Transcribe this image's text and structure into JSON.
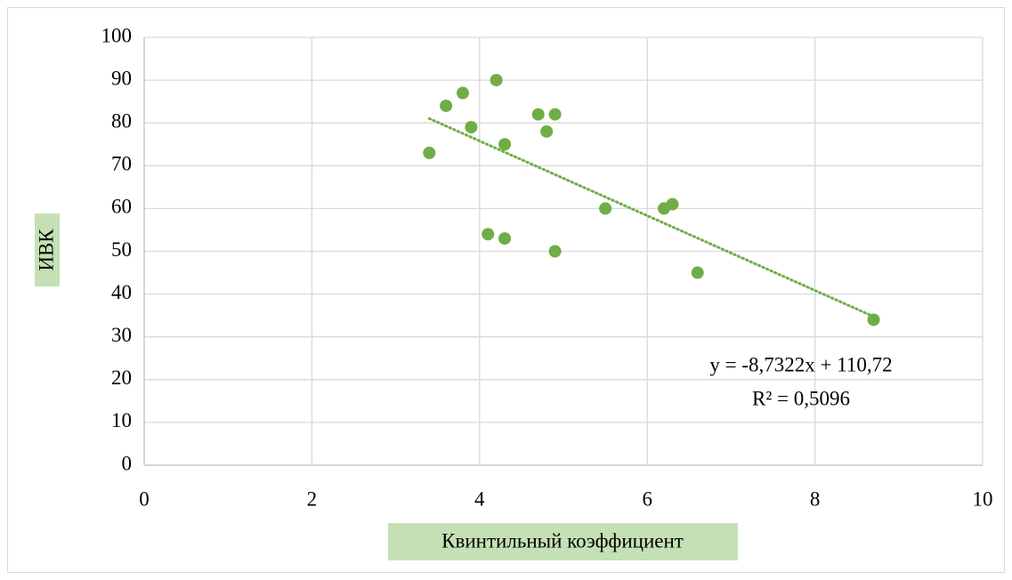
{
  "chart_data": {
    "type": "scatter",
    "x_label": "Квинтильный коэффициент",
    "y_label": "ИВК",
    "series": [
      {
        "color": "#70ad47",
        "x": [
          3.4,
          3.6,
          3.8,
          3.9,
          4.2,
          4.3,
          4.1,
          4.3,
          4.7,
          4.9,
          4.8,
          4.9,
          5.5,
          6.2,
          6.3,
          6.6,
          8.7
        ],
        "values": [
          73,
          84,
          87,
          79,
          90,
          75,
          54,
          53,
          82,
          82,
          78,
          50,
          60,
          60,
          61,
          45,
          34
        ]
      }
    ],
    "trendline": {
      "slope": -8.7322,
      "intercept": 110.72,
      "color": "#70ad47"
    },
    "annotation": [
      "y = -8,7322x + 110,72",
      "R² = 0,5096"
    ],
    "xlim": [
      0,
      10
    ],
    "xticks": [
      0,
      2,
      4,
      6,
      8,
      10
    ],
    "ylim": [
      0,
      100
    ],
    "yticks": [
      0,
      10,
      20,
      30,
      40,
      50,
      60,
      70,
      80,
      90,
      100
    ],
    "grid": true
  }
}
